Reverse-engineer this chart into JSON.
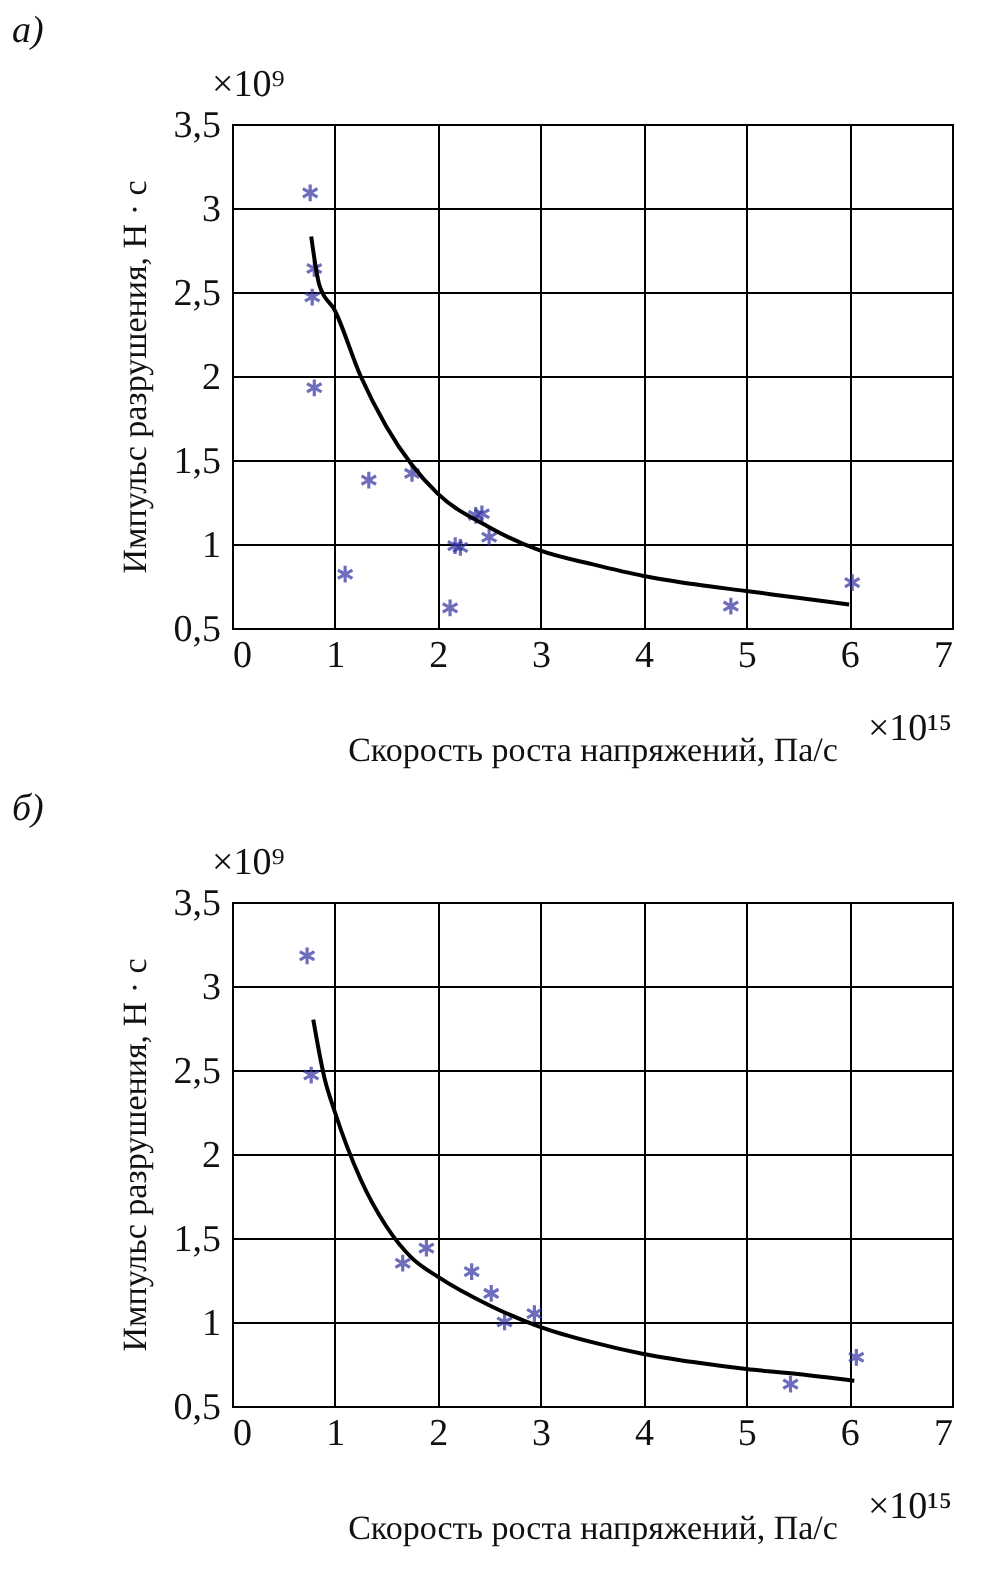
{
  "chart_data": [
    {
      "type": "scatter",
      "title": "а)",
      "xlabel": "Скорость роста напряжений, Па/с",
      "ylabel": "Импульс разрушения, Н · с",
      "annotations": [
        "×10⁹",
        "×10¹⁵"
      ],
      "xlim": [
        0,
        7
      ],
      "ylim": [
        0.5,
        3.5
      ],
      "xticks": [
        0,
        1,
        2,
        3,
        4,
        5,
        6,
        7
      ],
      "yticks": [
        {
          "value": 0.5,
          "label": "0,5"
        },
        1,
        {
          "value": 1.5,
          "label": "1,5"
        },
        2,
        {
          "value": 2.5,
          "label": "2,5"
        },
        3,
        {
          "value": 3.5,
          "label": "3,5"
        }
      ],
      "grid": true,
      "series": [
        {
          "color": "#3030a0",
          "marker": "cross",
          "x": [
            0.76,
            0.8,
            0.78,
            0.8,
            1.1,
            1.33,
            1.75,
            2.12,
            2.17,
            2.22,
            2.37,
            2.43,
            2.5,
            4.85,
            6.03
          ],
          "values": [
            3.09,
            2.64,
            2.47,
            1.93,
            0.82,
            1.38,
            1.42,
            0.62,
            0.99,
            0.98,
            1.17,
            1.18,
            1.04,
            0.63,
            0.77
          ]
        },
        {
          "type": "line",
          "color": "#000000",
          "x": [
            0.77,
            0.85,
            1,
            1.25,
            1.5,
            1.75,
            2,
            2.5,
            3,
            3.5,
            4,
            4.5,
            5,
            5.5,
            6
          ],
          "values": [
            2.83,
            2.54,
            2.39,
            2.0,
            1.7,
            1.47,
            1.3,
            1.1,
            0.96,
            0.88,
            0.81,
            0.76,
            0.72,
            0.68,
            0.64
          ]
        }
      ]
    },
    {
      "type": "scatter",
      "title": "б)",
      "xlabel": "Скорость роста напряжений, Па/с",
      "ylabel": "Импульс разрушения, Н · с",
      "annotations": [
        "×10⁹",
        "×10¹⁵"
      ],
      "xlim": [
        0,
        7
      ],
      "ylim": [
        0.5,
        3.5
      ],
      "xticks": [
        0,
        1,
        2,
        3,
        4,
        5,
        6,
        7
      ],
      "yticks": [
        {
          "value": 0.5,
          "label": "0,5"
        },
        1,
        {
          "value": 1.5,
          "label": "1,5"
        },
        2,
        {
          "value": 2.5,
          "label": "2,5"
        },
        3,
        {
          "value": 3.5,
          "label": "3,5"
        }
      ],
      "grid": true,
      "series": [
        {
          "color": "#3030a0",
          "marker": "cross",
          "x": [
            0.73,
            0.77,
            1.66,
            1.89,
            2.33,
            2.52,
            2.65,
            2.94,
            5.43,
            6.07
          ],
          "values": [
            3.18,
            2.47,
            1.35,
            1.44,
            1.3,
            1.17,
            1.0,
            1.05,
            0.63,
            0.79
          ]
        },
        {
          "type": "line",
          "color": "#000000",
          "x": [
            0.79,
            0.9,
            1,
            1.25,
            1.5,
            1.75,
            2,
            2.5,
            3,
            3.5,
            4,
            4.5,
            5,
            5.5,
            6.05
          ],
          "values": [
            2.8,
            2.45,
            2.25,
            1.85,
            1.57,
            1.38,
            1.27,
            1.1,
            0.97,
            0.88,
            0.81,
            0.76,
            0.72,
            0.69,
            0.65
          ]
        }
      ]
    }
  ]
}
